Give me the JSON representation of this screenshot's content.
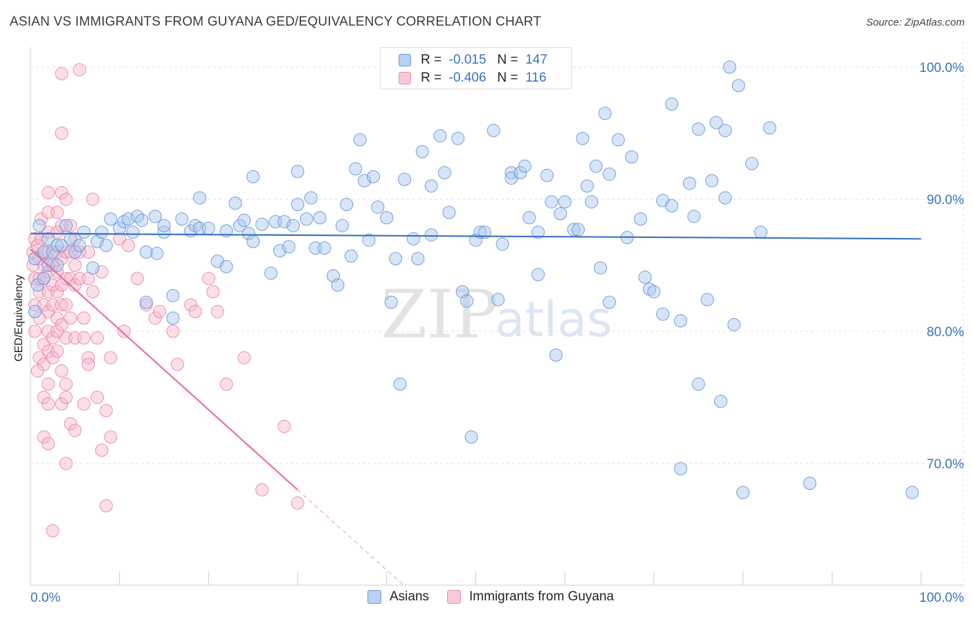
{
  "title": "ASIAN VS IMMIGRANTS FROM GUYANA GED/EQUIVALENCY CORRELATION CHART",
  "source": "Source: ZipAtlas.com",
  "colors": {
    "blue": "#3a72c4",
    "blue_fill": "#a9c6ee",
    "pink": "#e8709b",
    "pink_fill": "#f6b8cd",
    "grid": "#e0e0e0",
    "axis_text": "#3a72c4"
  },
  "legend": {
    "rows": [
      {
        "r_label": "R =",
        "r_value": "-0.015",
        "n_label": "N =",
        "n_value": "147"
      },
      {
        "r_label": "R =",
        "r_value": "-0.406",
        "n_label": "N =",
        "n_value": "116"
      }
    ]
  },
  "bottom_legend": {
    "items": [
      {
        "label": "Asians"
      },
      {
        "label": "Immigrants from Guyana"
      }
    ]
  },
  "watermark": {
    "zip": "ZIP",
    "atlas": "atlas"
  },
  "chart_data": {
    "type": "scatter",
    "title": "ASIAN VS IMMIGRANTS FROM GUYANA GED/EQUIVALENCY CORRELATION CHART",
    "xlabel": "",
    "ylabel": "GED/Equivalency",
    "xlim": [
      0,
      100
    ],
    "ylim": [
      60,
      101.5
    ],
    "x_tick_labels": [
      "0.0%",
      "100.0%"
    ],
    "y_ticks": [
      70,
      80,
      90,
      100
    ],
    "y_tick_labels": [
      "70.0%",
      "80.0%",
      "90.0%",
      "100.0%"
    ],
    "grid": true,
    "series": [
      {
        "name": "Asians",
        "r": -0.015,
        "n": 147,
        "trend": {
          "x": [
            0,
            100
          ],
          "y": [
            87.4,
            87.0
          ],
          "dashed_from": null
        },
        "points": [
          [
            0.5,
            85.5
          ],
          [
            0.5,
            81.5
          ],
          [
            0.8,
            83.5
          ],
          [
            1,
            88
          ],
          [
            1.5,
            86
          ],
          [
            1.5,
            84
          ],
          [
            2,
            85
          ],
          [
            2,
            87
          ],
          [
            2.5,
            86
          ],
          [
            3,
            86.5
          ],
          [
            3,
            85
          ],
          [
            3.5,
            86.5
          ],
          [
            4,
            88
          ],
          [
            4.5,
            87
          ],
          [
            5,
            86
          ],
          [
            5.5,
            86.5
          ],
          [
            6,
            87.5
          ],
          [
            7,
            84.8
          ],
          [
            7.5,
            86.8
          ],
          [
            8,
            87.5
          ],
          [
            8.5,
            86.5
          ],
          [
            9,
            88.5
          ],
          [
            10,
            87.8
          ],
          [
            10.5,
            88.3
          ],
          [
            11,
            88.5
          ],
          [
            11.5,
            87.5
          ],
          [
            12,
            88.7
          ],
          [
            12.5,
            88.4
          ],
          [
            13,
            82.2
          ],
          [
            13,
            86
          ],
          [
            14,
            88.7
          ],
          [
            14.2,
            85.9
          ],
          [
            15,
            87.5
          ],
          [
            15,
            88
          ],
          [
            16,
            82.7
          ],
          [
            16,
            81
          ],
          [
            17,
            88.5
          ],
          [
            18,
            87.6
          ],
          [
            18.5,
            88
          ],
          [
            19,
            87.8
          ],
          [
            19,
            90.1
          ],
          [
            20,
            87.8
          ],
          [
            21,
            85.3
          ],
          [
            22,
            87.6
          ],
          [
            22,
            84.9
          ],
          [
            23,
            89.7
          ],
          [
            23.5,
            88
          ],
          [
            24,
            88.4
          ],
          [
            24.5,
            87.4
          ],
          [
            25,
            91.7
          ],
          [
            25,
            86.8
          ],
          [
            26,
            88.1
          ],
          [
            27,
            84.4
          ],
          [
            27.5,
            88.3
          ],
          [
            28,
            86.1
          ],
          [
            28.5,
            88.3
          ],
          [
            29,
            86.4
          ],
          [
            29.5,
            88
          ],
          [
            30,
            92.1
          ],
          [
            30,
            89.6
          ],
          [
            31,
            88.5
          ],
          [
            31.5,
            90.1
          ],
          [
            32,
            86.3
          ],
          [
            32.5,
            88.6
          ],
          [
            33,
            86.3
          ],
          [
            34,
            84.2
          ],
          [
            34.5,
            83.5
          ],
          [
            35,
            88
          ],
          [
            35.5,
            89.6
          ],
          [
            36,
            85.7
          ],
          [
            36.5,
            92.3
          ],
          [
            37,
            94.5
          ],
          [
            37.5,
            91.4
          ],
          [
            38,
            86.9
          ],
          [
            38.5,
            91.7
          ],
          [
            39,
            89.4
          ],
          [
            40,
            88.6
          ],
          [
            40.5,
            82.2
          ],
          [
            41,
            85.5
          ],
          [
            41.5,
            76
          ],
          [
            42,
            91.5
          ],
          [
            43,
            87
          ],
          [
            43.5,
            85.5
          ],
          [
            44,
            93.6
          ],
          [
            45,
            87.3
          ],
          [
            45,
            91.0
          ],
          [
            46,
            94.8
          ],
          [
            46.5,
            92
          ],
          [
            47,
            89
          ],
          [
            48,
            94.6
          ],
          [
            48.5,
            83.0
          ],
          [
            49,
            82.3
          ],
          [
            49.5,
            72
          ],
          [
            50,
            86.9
          ],
          [
            50.5,
            87.5
          ],
          [
            51,
            87.5
          ],
          [
            52,
            95.2
          ],
          [
            52.5,
            82.4
          ],
          [
            53,
            86.6
          ],
          [
            54,
            92
          ],
          [
            54,
            91.6
          ],
          [
            55,
            92
          ],
          [
            55.5,
            92.5
          ],
          [
            56,
            88.6
          ],
          [
            57,
            87.5
          ],
          [
            57,
            84.3
          ],
          [
            58,
            91.8
          ],
          [
            58.5,
            89.8
          ],
          [
            59,
            78.2
          ],
          [
            59.5,
            88.9
          ],
          [
            60,
            89.8
          ],
          [
            61,
            87.7
          ],
          [
            61.5,
            87.7
          ],
          [
            62,
            94.6
          ],
          [
            62.5,
            91
          ],
          [
            63,
            89.8
          ],
          [
            63.5,
            92.5
          ],
          [
            64,
            84.8
          ],
          [
            64.5,
            96.5
          ],
          [
            65,
            91.9
          ],
          [
            65,
            82.2
          ],
          [
            66,
            94.5
          ],
          [
            67,
            87.1
          ],
          [
            67.5,
            93.2
          ],
          [
            68.5,
            88.5
          ],
          [
            69,
            84.1
          ],
          [
            69.5,
            83.2
          ],
          [
            70,
            83
          ],
          [
            71,
            81.3
          ],
          [
            71,
            89.9
          ],
          [
            72,
            97.2
          ],
          [
            72,
            89.5
          ],
          [
            73,
            80.8
          ],
          [
            73,
            69.6
          ],
          [
            74,
            91.2
          ],
          [
            74.5,
            88.7
          ],
          [
            75,
            95.3
          ],
          [
            75,
            76
          ],
          [
            76,
            82.4
          ],
          [
            76.5,
            91.4
          ],
          [
            77,
            95.8
          ],
          [
            77.5,
            74.7
          ],
          [
            78,
            95.2
          ],
          [
            78,
            90.1
          ],
          [
            79,
            80.5
          ],
          [
            80,
            67.8
          ],
          [
            81,
            92.7
          ],
          [
            82,
            87.5
          ],
          [
            83,
            95.4
          ],
          [
            78.5,
            100
          ],
          [
            79.5,
            98.6
          ],
          [
            87.5,
            68.5
          ],
          [
            99,
            67.8
          ]
        ]
      },
      {
        "name": "Immigrants from Guyana",
        "r": -0.406,
        "n": 116,
        "trend": {
          "x": [
            0,
            30,
            45
          ],
          "y": [
            86.2,
            68.0,
            58.9
          ],
          "dashed_from": 30
        },
        "points": [
          [
            0.3,
            86
          ],
          [
            0.3,
            85
          ],
          [
            0.5,
            84
          ],
          [
            0.5,
            87
          ],
          [
            0.5,
            82
          ],
          [
            0.5,
            80
          ],
          [
            0.8,
            86.5
          ],
          [
            1,
            85.5
          ],
          [
            1,
            84
          ],
          [
            1,
            83
          ],
          [
            1,
            81
          ],
          [
            1,
            78
          ],
          [
            1.2,
            88.5
          ],
          [
            1.2,
            87
          ],
          [
            1.5,
            86
          ],
          [
            1.5,
            85
          ],
          [
            1.5,
            84
          ],
          [
            1.5,
            82
          ],
          [
            1.5,
            79
          ],
          [
            1.5,
            77.5
          ],
          [
            1.5,
            75
          ],
          [
            1.5,
            72
          ],
          [
            2,
            90.5
          ],
          [
            2,
            89
          ],
          [
            2,
            87.5
          ],
          [
            2,
            86
          ],
          [
            2,
            84.5
          ],
          [
            2,
            83
          ],
          [
            2,
            81.5
          ],
          [
            2,
            80
          ],
          [
            2,
            78.5
          ],
          [
            2,
            76
          ],
          [
            2,
            74.5
          ],
          [
            2,
            71.5
          ],
          [
            2.5,
            85
          ],
          [
            2.5,
            83.5
          ],
          [
            2.5,
            82
          ],
          [
            2.5,
            79.5
          ],
          [
            2.5,
            78
          ],
          [
            2.5,
            64.9
          ],
          [
            3,
            89
          ],
          [
            3,
            87.5
          ],
          [
            3,
            86
          ],
          [
            3,
            84.5
          ],
          [
            3,
            83
          ],
          [
            3,
            81
          ],
          [
            3,
            80
          ],
          [
            3,
            78.5
          ],
          [
            3.5,
            95
          ],
          [
            3.5,
            90.5
          ],
          [
            3.5,
            88
          ],
          [
            3.5,
            85.5
          ],
          [
            3.5,
            83.5
          ],
          [
            3.5,
            82
          ],
          [
            3.5,
            80.5
          ],
          [
            3.5,
            77
          ],
          [
            3.5,
            74.5
          ],
          [
            3.5,
            99.5
          ],
          [
            4,
            90
          ],
          [
            4,
            86
          ],
          [
            4,
            84
          ],
          [
            4,
            82
          ],
          [
            4,
            79.5
          ],
          [
            4,
            76
          ],
          [
            4,
            75
          ],
          [
            4,
            70
          ],
          [
            4.5,
            88
          ],
          [
            4.5,
            86
          ],
          [
            4.5,
            84
          ],
          [
            4.5,
            81
          ],
          [
            4.5,
            73
          ],
          [
            5,
            87
          ],
          [
            5,
            85
          ],
          [
            5,
            83.5
          ],
          [
            5,
            79.5
          ],
          [
            5,
            72.5
          ],
          [
            5.5,
            99.8
          ],
          [
            5.5,
            86
          ],
          [
            5.5,
            84
          ],
          [
            6,
            81
          ],
          [
            6,
            79.5
          ],
          [
            6,
            74.5
          ],
          [
            6.5,
            86
          ],
          [
            6.5,
            84
          ],
          [
            6.5,
            78
          ],
          [
            6.5,
            77.5
          ],
          [
            7,
            83
          ],
          [
            7,
            90
          ],
          [
            7.5,
            75
          ],
          [
            7.5,
            79.5
          ],
          [
            8,
            84.5
          ],
          [
            8,
            71
          ],
          [
            8.5,
            74
          ],
          [
            8.5,
            66.8
          ],
          [
            9,
            72
          ],
          [
            9,
            78
          ],
          [
            10,
            87
          ],
          [
            10.5,
            80
          ],
          [
            11,
            86.5
          ],
          [
            12,
            84
          ],
          [
            13,
            82
          ],
          [
            14,
            81
          ],
          [
            14.5,
            81.5
          ],
          [
            16,
            80
          ],
          [
            16.5,
            77.5
          ],
          [
            18,
            82
          ],
          [
            18.5,
            81.5
          ],
          [
            20,
            84
          ],
          [
            20.5,
            83
          ],
          [
            21,
            81.5
          ],
          [
            22,
            76
          ],
          [
            24,
            78
          ],
          [
            26,
            68
          ],
          [
            28.5,
            72.8
          ],
          [
            30,
            67
          ],
          [
            0.8,
            77
          ]
        ]
      }
    ]
  }
}
